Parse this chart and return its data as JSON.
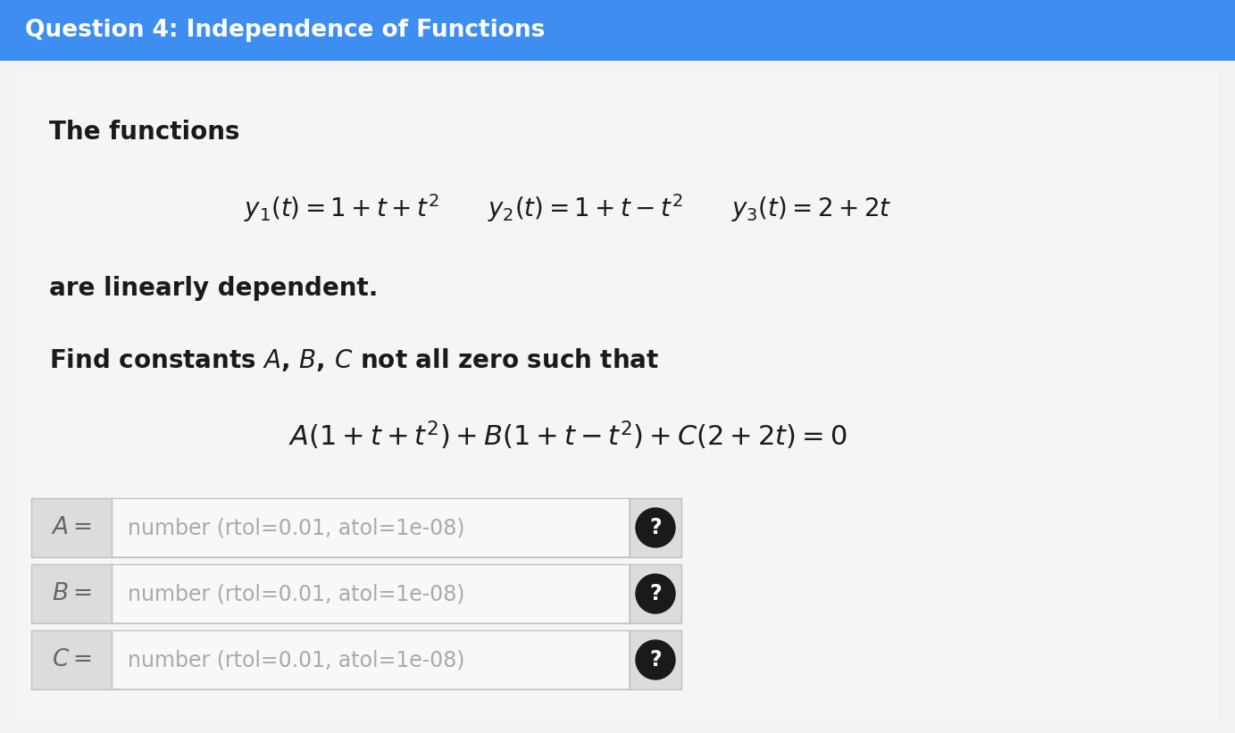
{
  "title": "Question 4: Independence of Functions",
  "title_bg_color": "#3d8ef0",
  "title_text_color": "#ffffff",
  "page_bg_color": "#e8e8e8",
  "content_bg_color": "#f2f2f2",
  "text_color": "#1a1a1a",
  "gray_text_color": "#999999",
  "table_bg_label": "#dcdcdc",
  "table_bg_input": "#f0f0f0",
  "table_border_color": "#c0c0c0",
  "question_circle_color": "#1a1a1a",
  "row_labels": [
    "$A =$",
    "$B =$",
    "$C =$"
  ],
  "row_content": "number (rtol=0.01, atol=1e-08)",
  "figsize": [
    13.83,
    8.21
  ],
  "dpi": 100
}
